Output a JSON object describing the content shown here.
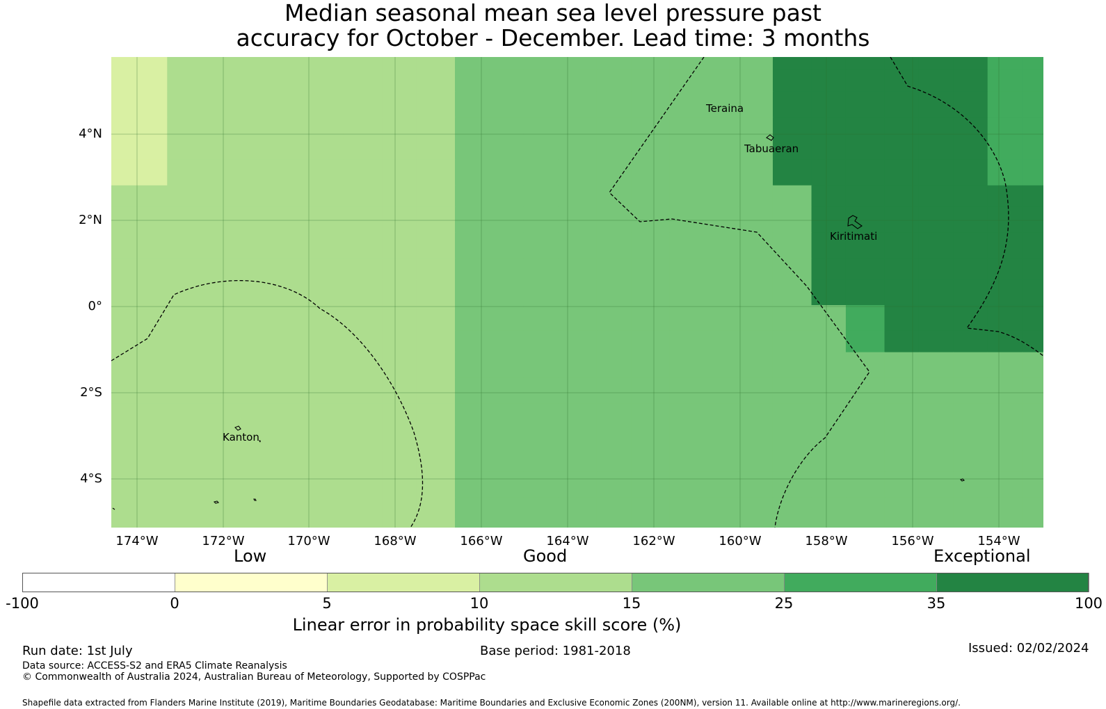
{
  "title": {
    "line1": "Median seasonal mean sea level pressure past",
    "line2": "accuracy for October - December. Lead time: 3 months"
  },
  "map": {
    "lon_range": [
      -174.6,
      -152.9
    ],
    "lat_range": [
      -5.2,
      5.8
    ],
    "lat_tick_labels": [
      "4°N",
      "2°N",
      "0°",
      "2°S",
      "4°S"
    ],
    "lon_tick_labels": [
      "174°W",
      "172°W",
      "170°W",
      "168°W",
      "166°W",
      "164°W",
      "162°W",
      "160°W",
      "158°W",
      "156°W",
      "154°W"
    ],
    "places": [
      "Teraina",
      "Tabuaeran",
      "Kiritimati",
      "Kanton"
    ],
    "boundary_line_style": "dashed",
    "gridlines": true
  },
  "skill_grid": {
    "columns_lon_west_edge": [
      -174.6,
      -173.3,
      -172.5,
      -171.6,
      -170.0,
      -169.2,
      -168.3,
      -167.5,
      -166.6,
      -165.8,
      -165.0,
      -164.2,
      -163.3,
      -162.5,
      -161.6,
      -160.0,
      -159.2,
      -158.3,
      -157.5,
      -156.6,
      -155.8,
      -155.0,
      -154.2,
      -153.4,
      -152.9
    ],
    "rows_lat_top_edge": [
      5.8,
      5.5,
      5.0,
      4.4,
      3.9,
      3.4,
      2.8,
      2.3,
      1.7,
      1.1,
      0.6,
      0.0,
      -0.6,
      -1.1,
      -1.7,
      -2.3,
      -2.8,
      -3.4,
      -3.9,
      -4.5,
      -5.0,
      -5.2
    ],
    "fill_levels": [
      "2333333344444444666666555",
      "2333333344444444666666555",
      "2333333344444444666666555",
      "2333333344444444666666555",
      "2333333344444444666666555",
      "2333333344444444666666555",
      "3333333344444444466666666",
      "3333333344444444466666666",
      "3333333344444444466666666",
      "3333333344444444466666666",
      "3333333344444444466666666",
      "3333333344444444445666666",
      "3333333344444444445666666",
      "3333333344444444444444444",
      "3333333344444444444444444",
      "3333333344444444444444444",
      "3333333344444444444444444",
      "3333333344444444444444444",
      "3333333344444444444444444",
      "3333333344444444444444444",
      "3333333344444444444444444"
    ]
  },
  "colorbar": {
    "category_labels": [
      "Low",
      "Good",
      "Exceptional"
    ],
    "tick_labels": [
      "-100",
      "0",
      "5",
      "10",
      "15",
      "25",
      "35",
      "100"
    ],
    "colors": [
      "#ffffff",
      "#ffffcc",
      "#d9f0a3",
      "#addd8e",
      "#78c679",
      "#41ab5d",
      "#238443"
    ],
    "axis_label": "Linear error in probability space skill score (%)"
  },
  "footer": {
    "run_date": "Run date: 1st July",
    "base_period": "Base period: 1981-2018",
    "issued": "Issued: 02/02/2024",
    "data_source": "Data source: ACCESS-S2 and ERA5 Climate Reanalysis",
    "copyright": "© Commonwealth of Australia 2024, Australian Bureau of Meteorology, Supported by COSPPac",
    "shapefile": "Shapefile data extracted from Flanders Marine Institute (2019), Maritime Boundaries Geodatabase: Maritime Boundaries and Exclusive Economic Zones (200NM), version 11. Available online at http://www.marineregions.org/."
  }
}
